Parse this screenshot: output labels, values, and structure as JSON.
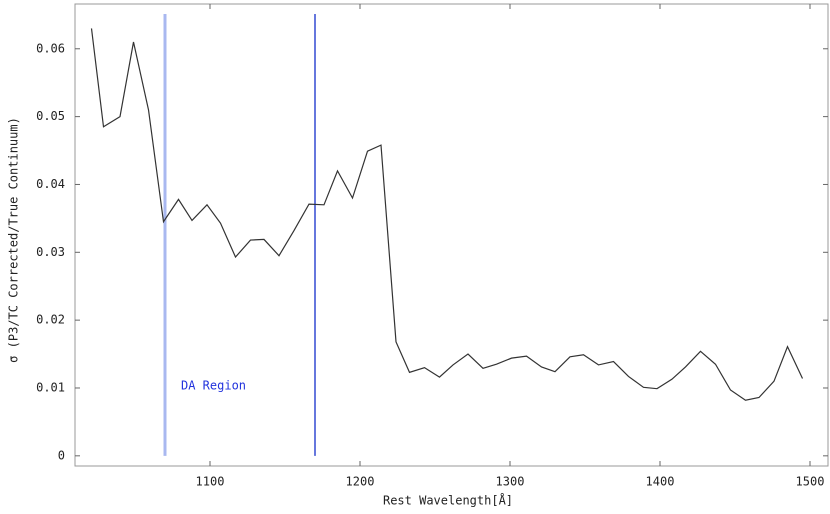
{
  "chart_data": {
    "type": "line",
    "xlabel": "Rest Wavelength[Å]",
    "ylabel": "σ (P3/TC Corrected/True Continuum)",
    "x": [
      1021,
      1029,
      1040,
      1049,
      1059,
      1069,
      1079,
      1088,
      1098,
      1107,
      1117,
      1127,
      1136,
      1146,
      1156,
      1166,
      1176,
      1185,
      1195,
      1205,
      1214,
      1224,
      1233,
      1243,
      1253,
      1262,
      1272,
      1282,
      1291,
      1301,
      1311,
      1321,
      1330,
      1340,
      1349,
      1359,
      1369,
      1379,
      1389,
      1398,
      1408,
      1417,
      1427,
      1437,
      1447,
      1457,
      1466,
      1476,
      1485,
      1495
    ],
    "series": [
      {
        "color": "#333333",
        "values": [
          0.063,
          0.0485,
          0.05,
          0.061,
          0.051,
          0.0345,
          0.0378,
          0.0347,
          0.037,
          0.0343,
          0.0293,
          0.0318,
          0.0319,
          0.0295,
          0.0332,
          0.0371,
          0.037,
          0.042,
          0.038,
          0.0449,
          0.0458,
          0.0168,
          0.0123,
          0.013,
          0.0116,
          0.0134,
          0.015,
          0.0129,
          0.0135,
          0.0144,
          0.0147,
          0.0131,
          0.0124,
          0.0146,
          0.0149,
          0.0134,
          0.0139,
          0.0117,
          0.0101,
          0.0099,
          0.0113,
          0.0131,
          0.0154,
          0.0135,
          0.0097,
          0.0082,
          0.0086,
          0.011,
          0.0161,
          0.0114
        ]
      }
    ],
    "vlines": [
      {
        "value": 1070,
        "color": "#a9b8f0"
      },
      {
        "value": 1170,
        "color": "#6677dd"
      }
    ],
    "annotation": "DA Region",
    "annotation_color": "#2233dd",
    "xlim": [
      1010,
      1512
    ],
    "ylim": [
      -0.0015,
      0.0666
    ],
    "xticks": [
      1100,
      1200,
      1300,
      1400,
      1500
    ],
    "yticks": [
      0,
      0.01,
      0.02,
      0.03,
      0.04,
      0.05,
      0.06
    ]
  }
}
